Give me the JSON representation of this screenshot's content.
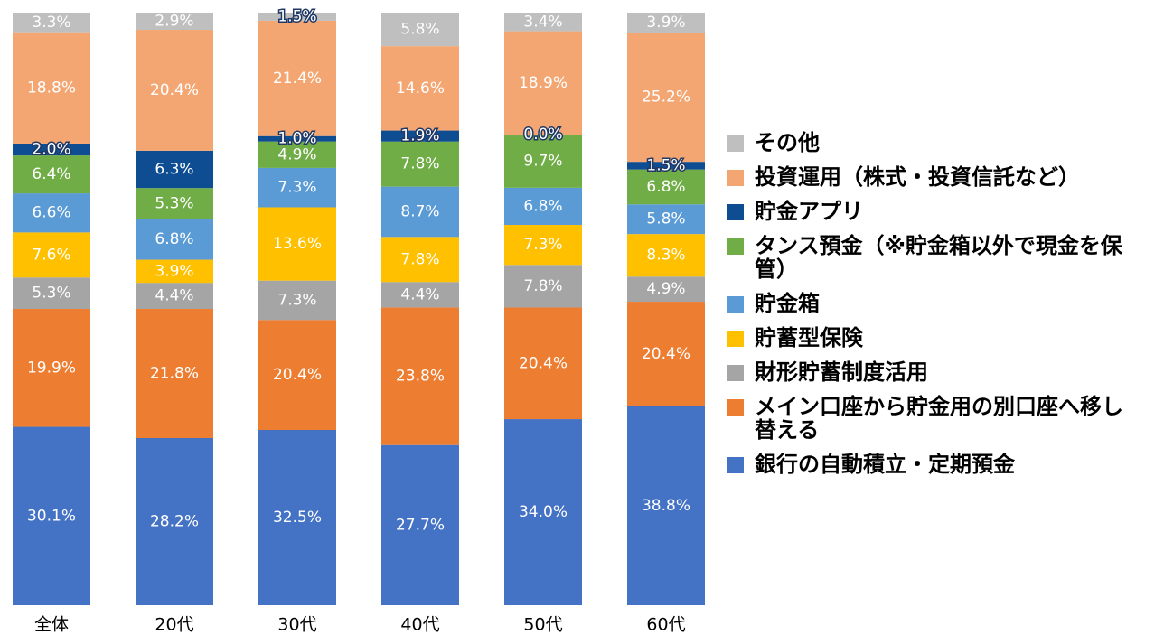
{
  "chart_data": {
    "type": "bar",
    "stacked": "percent",
    "categories": [
      "全体",
      "20代",
      "30代",
      "40代",
      "50代",
      "60代"
    ],
    "series": [
      {
        "name": "銀行の自動積立・定期預金",
        "color": "#4472c4",
        "values": [
          30.1,
          28.2,
          32.5,
          27.7,
          34.0,
          38.8
        ],
        "value_labels": [
          "30.1%",
          "28.2%",
          "32.5%",
          "27.7%",
          "34.0%",
          "38.8%"
        ]
      },
      {
        "name": "メイン口座から貯金用の別口座へ移し替える",
        "color": "#ed7d31",
        "values": [
          19.9,
          21.8,
          20.4,
          23.8,
          20.4,
          20.4
        ],
        "value_labels": [
          "19.9%",
          "21.8%",
          "20.4%",
          "23.8%",
          "20.4%",
          "20.4%"
        ]
      },
      {
        "name": "財形貯蓄制度活用",
        "color": "#a5a5a5",
        "values": [
          5.3,
          4.4,
          7.3,
          4.4,
          7.8,
          4.9
        ],
        "value_labels": [
          "5.3%",
          "4.4%",
          "7.3%",
          "4.4%",
          "7.8%",
          "4.9%"
        ]
      },
      {
        "name": "貯蓄型保険",
        "color": "#ffc000",
        "values": [
          7.6,
          3.9,
          13.6,
          7.8,
          7.3,
          8.3
        ],
        "value_labels": [
          "7.6%",
          "3.9%",
          "13.6%",
          "7.8%",
          "7.3%",
          "8.3%"
        ]
      },
      {
        "name": "貯金箱",
        "color": "#5b9bd5",
        "values": [
          6.6,
          6.8,
          7.3,
          8.7,
          6.8,
          5.8
        ],
        "value_labels": [
          "6.6%",
          "6.8%",
          "7.3%",
          "8.7%",
          "6.8%",
          "5.8%"
        ]
      },
      {
        "name": "タンス預金（※貯金箱以外で現金を保管）",
        "color": "#70ad47",
        "values": [
          6.4,
          5.3,
          4.9,
          7.8,
          9.7,
          6.8
        ],
        "value_labels": [
          "6.4%",
          "5.3%",
          "4.9%",
          "7.8%",
          "9.7%",
          "6.8%"
        ]
      },
      {
        "name": "貯金アプリ",
        "color": "#0e4d92",
        "values": [
          2.0,
          6.3,
          1.0,
          1.9,
          0.0,
          1.5
        ],
        "value_labels": [
          "2.0%",
          "6.3%",
          "1.0%",
          "1.9%",
          "0.0%",
          "1.5%"
        ]
      },
      {
        "name": "投資運用（株式・投資信託など）",
        "color": "#f4a672",
        "values": [
          18.8,
          20.4,
          21.4,
          14.6,
          18.9,
          25.2
        ],
        "value_labels": [
          "18.8%",
          "20.4%",
          "21.4%",
          "14.6%",
          "18.9%",
          "25.2%"
        ]
      },
      {
        "name": "その他",
        "color": "#bfbfbf",
        "values": [
          3.3,
          2.9,
          1.5,
          5.8,
          3.4,
          3.9
        ],
        "value_labels": [
          "3.3%",
          "2.9%",
          "1.5%",
          "5.8%",
          "3.4%",
          "3.9%"
        ]
      }
    ]
  }
}
